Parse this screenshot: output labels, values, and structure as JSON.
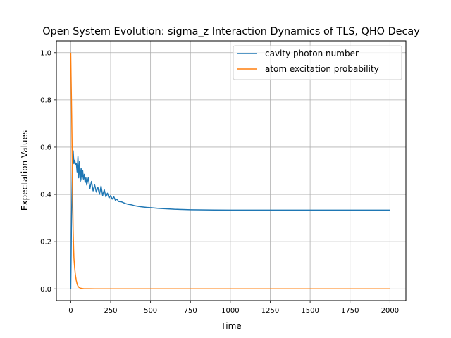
{
  "chart_data": {
    "type": "line",
    "title": "Open System Evolution: sigma_z Interaction Dynamics of TLS, QHO Decay",
    "xlabel": "Time",
    "ylabel": "Expectation Values",
    "xlim": [
      -90,
      2100
    ],
    "ylim": [
      -0.05,
      1.05
    ],
    "xticks": [
      0,
      250,
      500,
      750,
      1000,
      1250,
      1500,
      1750,
      2000
    ],
    "yticks": [
      0.0,
      0.2,
      0.4,
      0.6,
      0.8,
      1.0
    ],
    "xtick_labels": [
      "0",
      "250",
      "500",
      "750",
      "1000",
      "1250",
      "1500",
      "1750",
      "2000"
    ],
    "ytick_labels": [
      "0.0",
      "0.2",
      "0.4",
      "0.6",
      "0.8",
      "1.0"
    ],
    "grid": true,
    "legend_position": "top-right",
    "series": [
      {
        "name": "cavity photon number",
        "color": "#1f77b4",
        "x": [
          0,
          5,
          10,
          15,
          20,
          25,
          30,
          35,
          40,
          45,
          50,
          55,
          60,
          65,
          70,
          75,
          80,
          85,
          90,
          95,
          100,
          110,
          120,
          130,
          140,
          150,
          160,
          170,
          180,
          190,
          200,
          210,
          220,
          230,
          240,
          250,
          260,
          270,
          280,
          290,
          300,
          320,
          340,
          360,
          380,
          400,
          425,
          450,
          475,
          500,
          550,
          600,
          650,
          700,
          750,
          800,
          900,
          1000,
          1250,
          1500,
          1750,
          2000
        ],
        "y": [
          0.0,
          0.3,
          0.52,
          0.585,
          0.53,
          0.545,
          0.525,
          0.53,
          0.495,
          0.56,
          0.47,
          0.54,
          0.455,
          0.51,
          0.46,
          0.5,
          0.465,
          0.485,
          0.45,
          0.47,
          0.44,
          0.47,
          0.425,
          0.455,
          0.415,
          0.44,
          0.41,
          0.43,
          0.4,
          0.435,
          0.395,
          0.42,
          0.39,
          0.405,
          0.385,
          0.395,
          0.38,
          0.39,
          0.375,
          0.38,
          0.37,
          0.368,
          0.362,
          0.358,
          0.356,
          0.352,
          0.349,
          0.347,
          0.345,
          0.344,
          0.341,
          0.339,
          0.337,
          0.336,
          0.335,
          0.3345,
          0.3338,
          0.3335,
          0.3333,
          0.3333,
          0.3333,
          0.3333
        ]
      },
      {
        "name": "atom excitation probability",
        "color": "#ff7f0e",
        "x": [
          0,
          2,
          4,
          6,
          8,
          10,
          12,
          15,
          18,
          20,
          25,
          30,
          35,
          40,
          45,
          50,
          60,
          70,
          80,
          100,
          150,
          200,
          500,
          1000,
          1500,
          2000
        ],
        "y": [
          1.0,
          0.9,
          0.82,
          0.73,
          0.62,
          0.5,
          0.38,
          0.25,
          0.17,
          0.13,
          0.085,
          0.055,
          0.035,
          0.02,
          0.012,
          0.007,
          0.003,
          0.0015,
          0.0008,
          0.0003,
          0.0,
          0.0,
          0.0,
          0.0,
          0.0,
          0.0
        ]
      }
    ]
  }
}
